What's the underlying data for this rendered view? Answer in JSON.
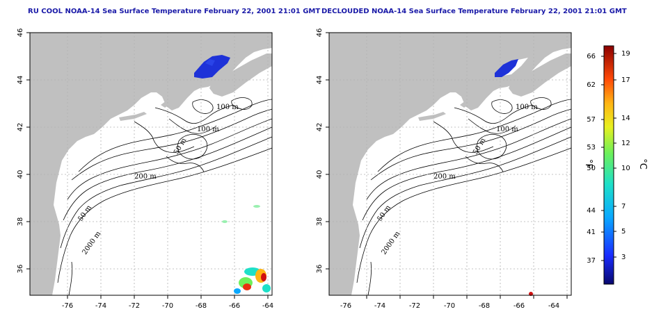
{
  "titles": {
    "left": "RU COOL NOAA-14 Sea Surface Temperature February 22, 2001 21:01 GMT",
    "right": "DECLOUDED NOAA-14 Sea Surface Temperature February 22, 2001 21:01 GMT"
  },
  "axes": {
    "lat_ticks": [
      "46",
      "44",
      "42",
      "40",
      "38",
      "36"
    ],
    "lon_ticks": [
      "-76",
      "-74",
      "-72",
      "-70",
      "-68",
      "-66",
      "-64"
    ]
  },
  "contour_labels": [
    "100 m",
    "100 m",
    "50 m",
    "200 m",
    "50 m",
    "2000 m"
  ],
  "colorbar": {
    "fahrenheit_ticks": [
      "66",
      "62",
      "57",
      "53",
      "50",
      "44",
      "41",
      "37"
    ],
    "celsius_ticks": [
      "19",
      "17",
      "14",
      "12",
      "10",
      "7",
      "5",
      "3"
    ],
    "unit_f": "°F",
    "unit_c": "°C"
  },
  "colors": {
    "land": "#c0c0c0",
    "cold_patch": "#1e32d8",
    "title": "#1a1aa8",
    "grid": "#b0b0b0"
  }
}
